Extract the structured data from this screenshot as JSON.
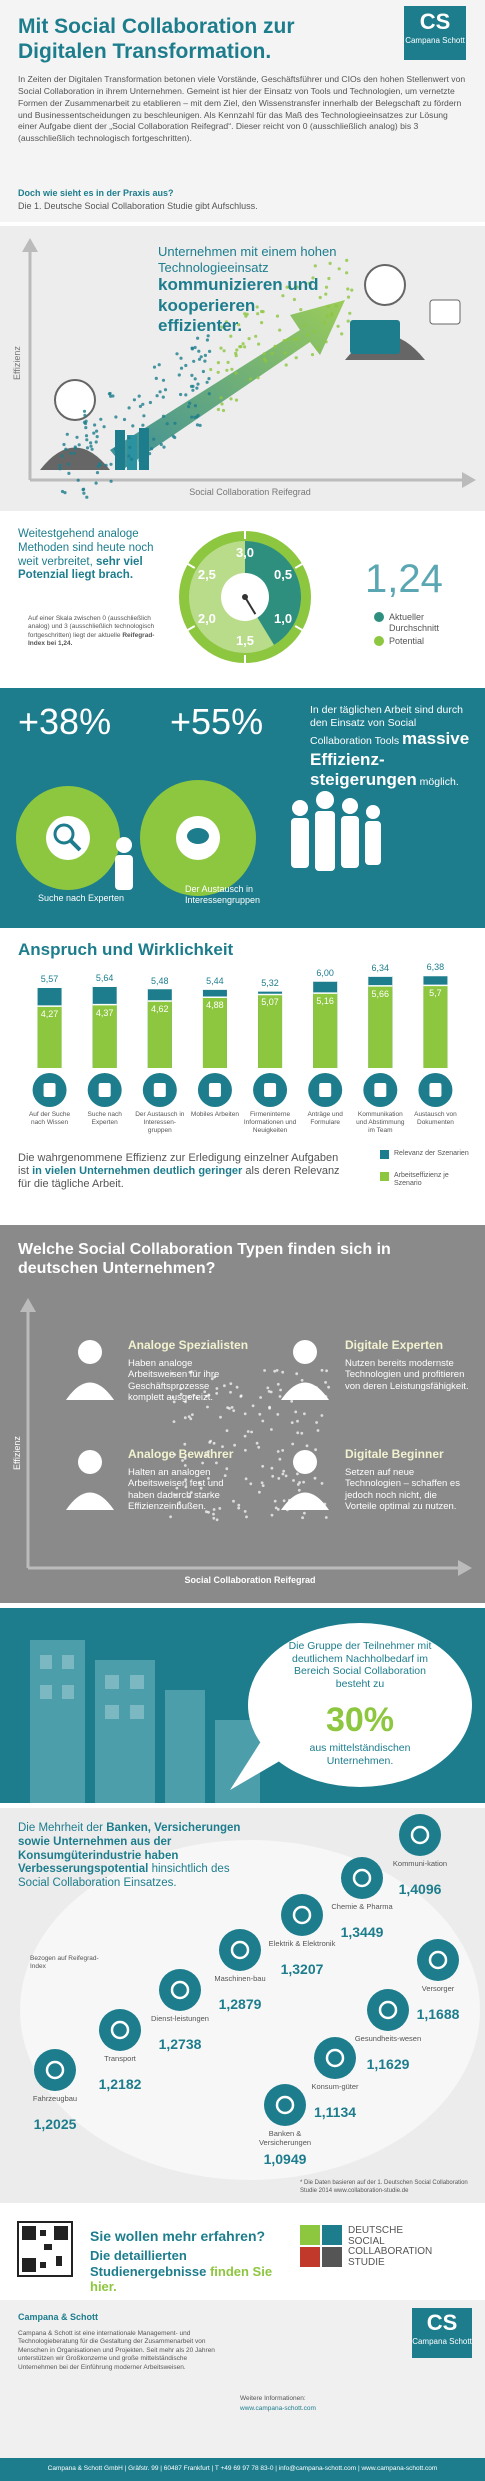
{
  "header": {
    "title": "Mit Social Collaboration zur Digitalen Transformation.",
    "logo_short": "CS",
    "logo_name": "Campana Schott",
    "intro": "In Zeiten der Digitalen Transformation betonen viele Vorstände, Geschäftsführer und CIOs den hohen Stellenwert von Social Collaboration in ihrem Unternehmen. Gemeint ist hier der Einsatz von Tools und Technologien, um vernetzte Formen der Zusammenarbeit zu etablieren – mit dem Ziel, den Wissenstransfer innerhalb der Belegschaft zu fördern und Businessentscheidungen zu beschleunigen. Als Kennzahl für das Maß des Technologieeinsatzes zur Lösung einer Aufgabe dient der „Social Collaboration Reifegrad“. Dieser reicht von 0 (ausschließlich analog) bis 3 (ausschließlich technologisch fortgeschritten).",
    "question": "Doch wie sieht es in der Praxis aus?",
    "answer": "Die 1. Deutsche Social Collaboration Studie gibt Aufschluss."
  },
  "maturity": {
    "headline": "Unternehmen mit einem hohen Technologieeinsatz",
    "headline_bold": "kommunizieren und kooperieren effizienter.",
    "y_label": "Effizienz",
    "x_label": "Social Collaboration Reifegrad"
  },
  "potential": {
    "text": "Weitestgehend analoge Methoden sind heute noch weit verbreitet,",
    "text_bold": "sehr viel Potenzial liegt brach.",
    "note": "Auf einer Skala zwischen 0 (ausschließlich analog) und 3 (ausschließlich technologisch fortgeschritten) liegt der aktuelle",
    "note_bold": "Reifegrad-Index bei 1,24."
  },
  "efficiency": {
    "stat1": "+38%",
    "stat2": "+55%",
    "label1": "Suche nach Experten",
    "label2": "Der Austausch in Interessengruppen",
    "text": "In der täglichen Arbeit sind durch den Einsatz von Social Collaboration Tools",
    "text_bold": "massive Effizienz-steigerungen",
    "text_end": "möglich."
  },
  "chart_data": [
    {
      "type": "gauge",
      "values": [
        1.24
      ],
      "value_labels": [
        "1,24"
      ],
      "color": "#2e8f7e",
      "ylim": [
        0,
        3
      ],
      "yticks": [
        {
          "value": 0.5,
          "label": "0,5"
        },
        {
          "value": 1.0,
          "label": "1,0"
        },
        {
          "value": 1.5,
          "label": "1,5"
        },
        {
          "value": 2.0,
          "label": "2,0"
        },
        {
          "value": 2.5,
          "label": "2,5"
        },
        {
          "value": 3.0,
          "label": "3,0"
        }
      ],
      "legend": [
        {
          "name": "Aktueller Durchschnitt",
          "color": "#2e8f7e"
        },
        {
          "name": "Potential",
          "color": "#8dc63f"
        }
      ]
    },
    {
      "type": "bar",
      "title": "Anspruch und Wirklichkeit",
      "categories": [
        "Auf der Suche nach Wissen",
        "Suche nach Experten",
        "Der Austausch in Interessen-gruppen",
        "Mobiles Arbeiten",
        "Firmeninterne Informationen und Neuigkeiten",
        "Anträge und Formulare",
        "Kommunikation und Abstimmung im Team",
        "Austausch von Dokumenten"
      ],
      "series": [
        {
          "name": "Relevanz der Szenarien",
          "color": "#1d7d8d",
          "values": [
            5.57,
            5.64,
            5.48,
            5.44,
            5.32,
            6.0,
            6.34,
            6.38
          ],
          "value_labels": [
            "5,57",
            "5,64",
            "5,48",
            "5,44",
            "5,32",
            "6,00",
            "6,34",
            "6,38"
          ]
        },
        {
          "name": "Arbeitseffizienz je Szenario",
          "color": "#8dc63f",
          "values": [
            4.27,
            4.37,
            4.62,
            4.88,
            5.07,
            5.16,
            5.66,
            5.7
          ],
          "value_labels": [
            "4,27",
            "4,37",
            "4,62",
            "4,88",
            "5,07",
            "5,16",
            "5,66",
            "5,7"
          ]
        }
      ],
      "caption": "Die wahrgenommene Effizienz zur Erledigung einzelner Aufgaben ist",
      "caption_bold": "in vielen Unternehmen deutlich geringer",
      "caption_end": "als deren Relevanz für die tägliche Arbeit."
    }
  ],
  "types": {
    "title": "Welche Social Collaboration Typen finden sich in deutschen Unternehmen?",
    "y_label": "Effizienz",
    "x_label": "Social Collaboration Reifegrad",
    "items": [
      {
        "name": "Analoge Spezialisten",
        "text": "Haben analoge Arbeitsweisen für ihre Geschäftsprozesse komplett ausgereizt."
      },
      {
        "name": "Digitale Experten",
        "text": "Nutzen bereits modernste Technologien und profitieren von deren Leistungsfähigkeit."
      },
      {
        "name": "Analoge Bewahrer",
        "text": "Halten an analogen Arbeitsweisen fest und haben dadurch starke Effizienzeinbußen."
      },
      {
        "name": "Digitale Beginner",
        "text": "Setzen auf neue Technologien – schaffen es jedoch noch nicht, die Vorteile optimal zu nutzen."
      }
    ]
  },
  "midsize": {
    "text": "Die Gruppe der Teilnehmer mit deutlichem Nachholbedarf im Bereich Social Collaboration besteht zu",
    "stat": "30%",
    "text_end": "aus mittelständischen Unternehmen."
  },
  "industries": {
    "text": "Die Mehrheit der",
    "text_bold": "Banken, Versicherungen sowie Unternehmen aus der Konsumgüterindustrie haben Verbesserungspotential",
    "text_end": "hinsichtlich des Social Collaboration Einsatzes.",
    "legend": "Bezogen auf Reifegrad-Index",
    "items": [
      {
        "name": "Kommuni-kation",
        "value": "1,4096"
      },
      {
        "name": "Chemie & Pharma",
        "value": "1,3449"
      },
      {
        "name": "Elektrik & Elektronik",
        "value": "1,3207"
      },
      {
        "name": "Maschinen-bau",
        "value": "1,2879"
      },
      {
        "name": "Dienst-leistungen",
        "value": "1,2738"
      },
      {
        "name": "Transport",
        "value": "1,2182"
      },
      {
        "name": "Fahrzeugbau",
        "value": "1,2025"
      },
      {
        "name": "Versorger",
        "value": "1,1688"
      },
      {
        "name": "Gesundheits-wesen",
        "value": "1,1629"
      },
      {
        "name": "Konsum-güter",
        "value": "1,1134"
      },
      {
        "name": "Banken & Versicherungen",
        "value": "1,0949"
      }
    ],
    "footnote": "* Die Daten basieren auf der 1. Deutschen Social Collaboration Studie 2014 www.collaboration-studie.de"
  },
  "cta": {
    "question": "Sie wollen mehr erfahren?",
    "text": "Die detaillierten Studienergebnisse",
    "text_bold": "finden Sie hier.",
    "logo_lines": [
      "DEUTSCHE",
      "SOCIAL",
      "COLLABORATION",
      "STUDIE"
    ]
  },
  "footer": {
    "company": "Campana & Schott",
    "description": "Campana & Schott ist eine internationale Management- und Technologieberatung für die Gestaltung der Zusammenarbeit von Menschen in Organisationen und Projekten. Seit mehr als 20 Jahren unterstützen wir Großkonzerne und große mittelständische Unternehmen bei der Einführung moderner Arbeitsweisen.",
    "info_label": "Weitere Informationen:",
    "info_url": "www.campana-schott.com",
    "logo_short": "CS",
    "logo_name": "Campana Schott",
    "address": "Campana & Schott GmbH | Gräfstr. 99 | 60487 Frankfurt | T +49 69 97 78 83-0 | info@campana-schott.com | www.campana-schott.com"
  }
}
